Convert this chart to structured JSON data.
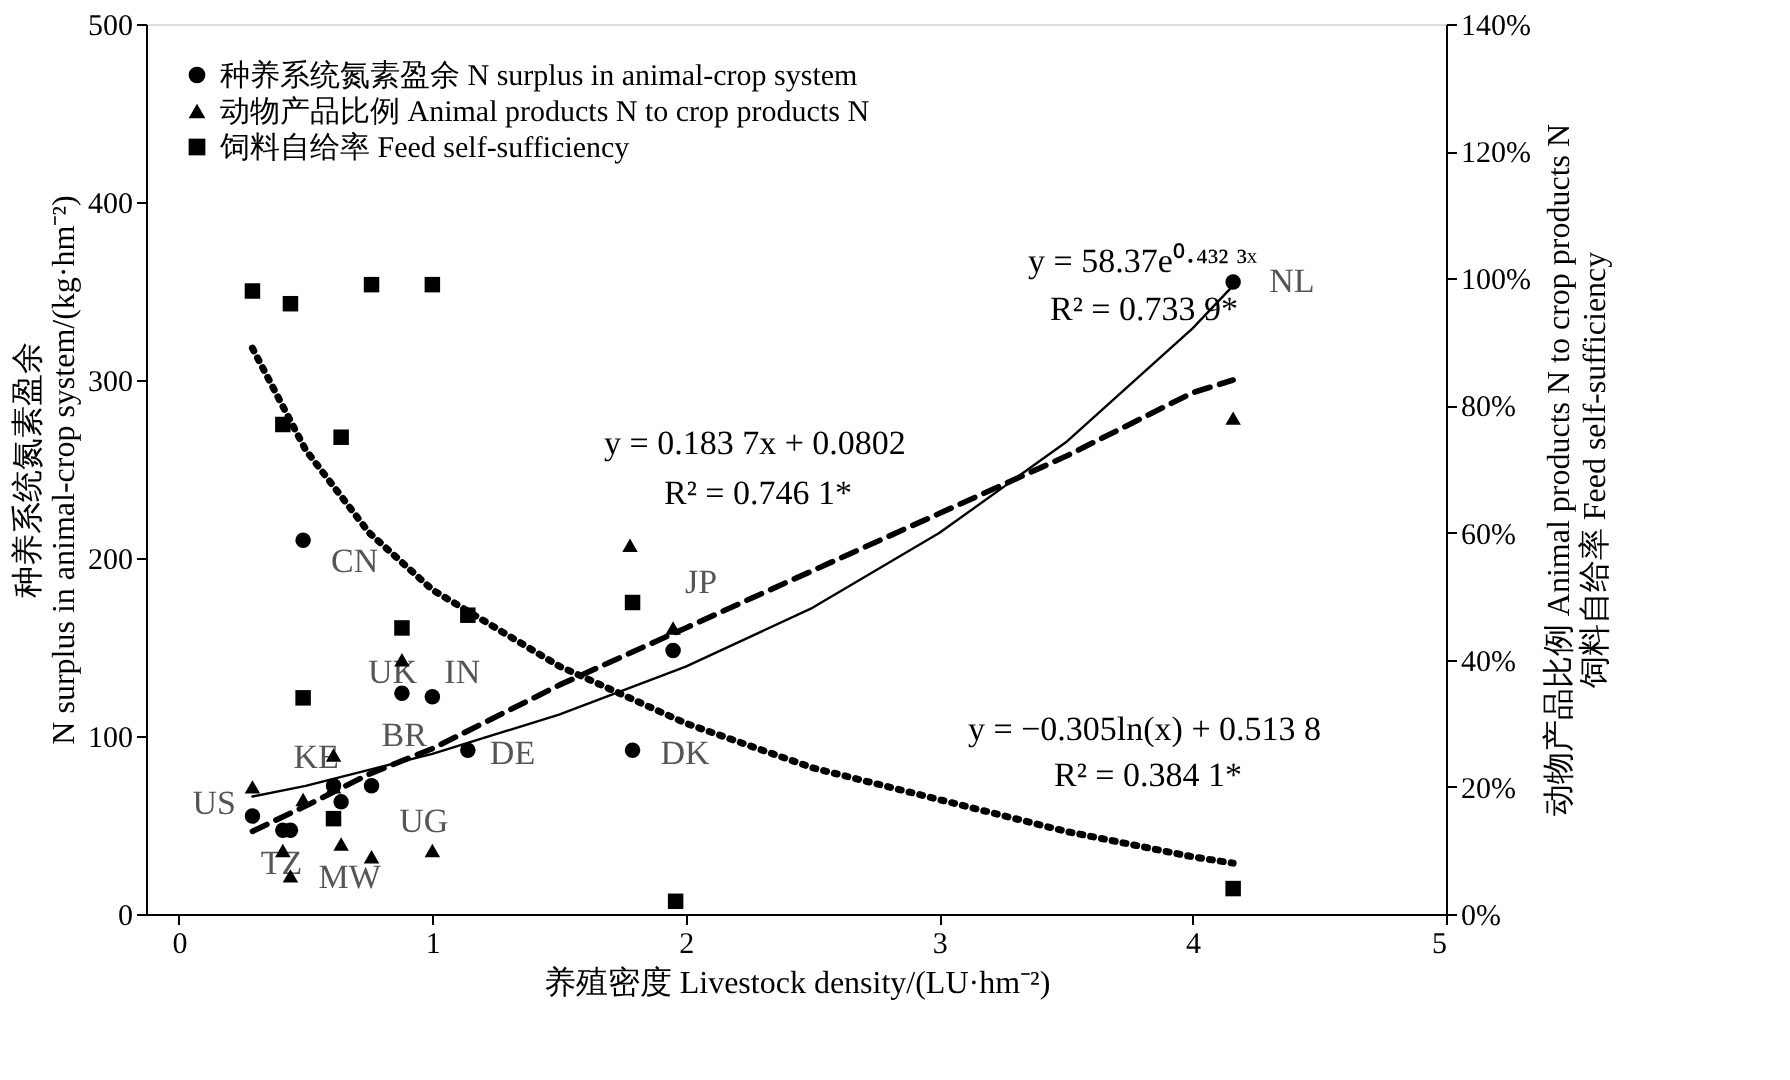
{
  "chart_data": {
    "type": "scatter",
    "xlabel": "养殖密度 Livestock density/(LU·hm⁻²)",
    "ylabel": "种养系统氮素盈余\nN surplus in animal-crop system/(kg·hm⁻²)",
    "y2label": "动物产品比例 Animal products N to crop products N\n饲料自给率 Feed self-sufficiency",
    "xlim": [
      -0.13,
      5
    ],
    "xticks": [
      0,
      1,
      2,
      3,
      4,
      5
    ],
    "ylim": [
      0,
      500
    ],
    "yticks": [
      0,
      100,
      200,
      300,
      400,
      500
    ],
    "y2lim": [
      0,
      140
    ],
    "y2ticks": [
      {
        "value": 0,
        "label": "0%"
      },
      {
        "value": 20,
        "label": "20%"
      },
      {
        "value": 40,
        "label": "40%"
      },
      {
        "value": 60,
        "label": "60%"
      },
      {
        "value": 80,
        "label": "80%"
      },
      {
        "value": 100,
        "label": "100%"
      },
      {
        "value": 120,
        "label": "120%"
      },
      {
        "value": 140,
        "label": "140%"
      }
    ],
    "grid": false,
    "legend": "top left",
    "series": [
      {
        "name": "种养系统氮素盈余 N surplus in animal-crop system",
        "marker": "circle",
        "color": "#000000",
        "x": [
          0.49,
          0.88,
          1.0,
          1.14,
          0.76,
          0.64,
          0.61,
          0.29,
          0.41,
          0.44,
          1.79,
          1.95,
          4.16
        ],
        "values": [
          210,
          124,
          122,
          92,
          72,
          63,
          72,
          55,
          47,
          47,
          92,
          148,
          355
        ]
      },
      {
        "name": "动物产品比例 Animal products N to crop products N",
        "marker": "triangle",
        "color": "#000000",
        "axis": "y2",
        "x": [
          4.16,
          1.78,
          1.95,
          0.88,
          0.61,
          0.29,
          0.49,
          0.61,
          0.41,
          0.44,
          0.64,
          0.76,
          1.0
        ],
        "values": [
          78,
          58,
          45,
          40,
          25,
          20,
          18,
          20,
          10,
          6,
          11,
          9,
          10
        ]
      },
      {
        "name": "饲料自给率 Feed self-sufficiency",
        "marker": "square",
        "color": "#000000",
        "axis": "y2",
        "x": [
          0.29,
          0.44,
          0.76,
          1.0,
          0.41,
          0.64,
          0.88,
          1.14,
          0.49,
          0.61,
          1.79,
          1.96,
          4.16
        ],
        "values": [
          98,
          96,
          99,
          99,
          77,
          75,
          45,
          47,
          34,
          15,
          49,
          2,
          4
        ]
      },
      {
        "type": "line",
        "line_style": "solid",
        "color": "#000000",
        "x": [
          0.29,
          0.5,
          0.75,
          1,
          1.5,
          2,
          2.5,
          3,
          3.5,
          4,
          4.16
        ],
        "values": [
          66,
          72,
          81,
          90,
          112,
          139,
          172,
          214,
          265,
          329,
          353
        ]
      },
      {
        "type": "line",
        "line_style": "dashed",
        "color": "#000000",
        "axis": "y2",
        "x": [
          0.29,
          0.5,
          0.75,
          1,
          1.5,
          2,
          2.5,
          3,
          3.5,
          4,
          4.16
        ],
        "values": [
          13,
          17,
          22,
          26,
          36,
          45,
          54,
          63,
          72,
          82,
          84
        ]
      },
      {
        "type": "line",
        "line_style": "dotted",
        "color": "#000000",
        "axis": "y2",
        "x": [
          0.29,
          0.5,
          0.75,
          1,
          1.5,
          2,
          2.5,
          3,
          3.5,
          4,
          4.16
        ],
        "values": [
          89,
          73,
          60,
          51,
          39,
          30,
          23,
          18,
          13,
          9,
          8
        ]
      }
    ],
    "annotations": [
      {
        "text": "NL",
        "x": 4.16,
        "y": 355
      },
      {
        "text": "JP",
        "x": 1.95,
        "y": 148
      },
      {
        "text": "DK",
        "x": 1.79,
        "y": 92
      },
      {
        "text": "CN",
        "x": 0.49,
        "y": 210
      },
      {
        "text": "UK",
        "x": 0.88,
        "y": 124
      },
      {
        "text": "IN",
        "x": 1.0,
        "y": 122
      },
      {
        "text": "DE",
        "x": 1.14,
        "y": 92
      },
      {
        "text": "BR",
        "x": 0.76,
        "y": 72
      },
      {
        "text": "KE",
        "x": 0.61,
        "y": 72
      },
      {
        "text": "US",
        "x": 0.29,
        "y": 55
      },
      {
        "text": "UG",
        "x": 0.64,
        "y": 63
      },
      {
        "text": "TZ",
        "x": 0.41,
        "y": 47
      },
      {
        "text": "MW",
        "x": 0.44,
        "y": 47
      },
      "y = 58.37e⁰·⁴³² ³ˣ",
      "R² = 0.733 9*",
      "y = 0.183 7x + 0.0802",
      "R² = 0.746 1*",
      "y = −0.305ln(x) + 0.513 8",
      "R² = 0.384 1*"
    ]
  }
}
